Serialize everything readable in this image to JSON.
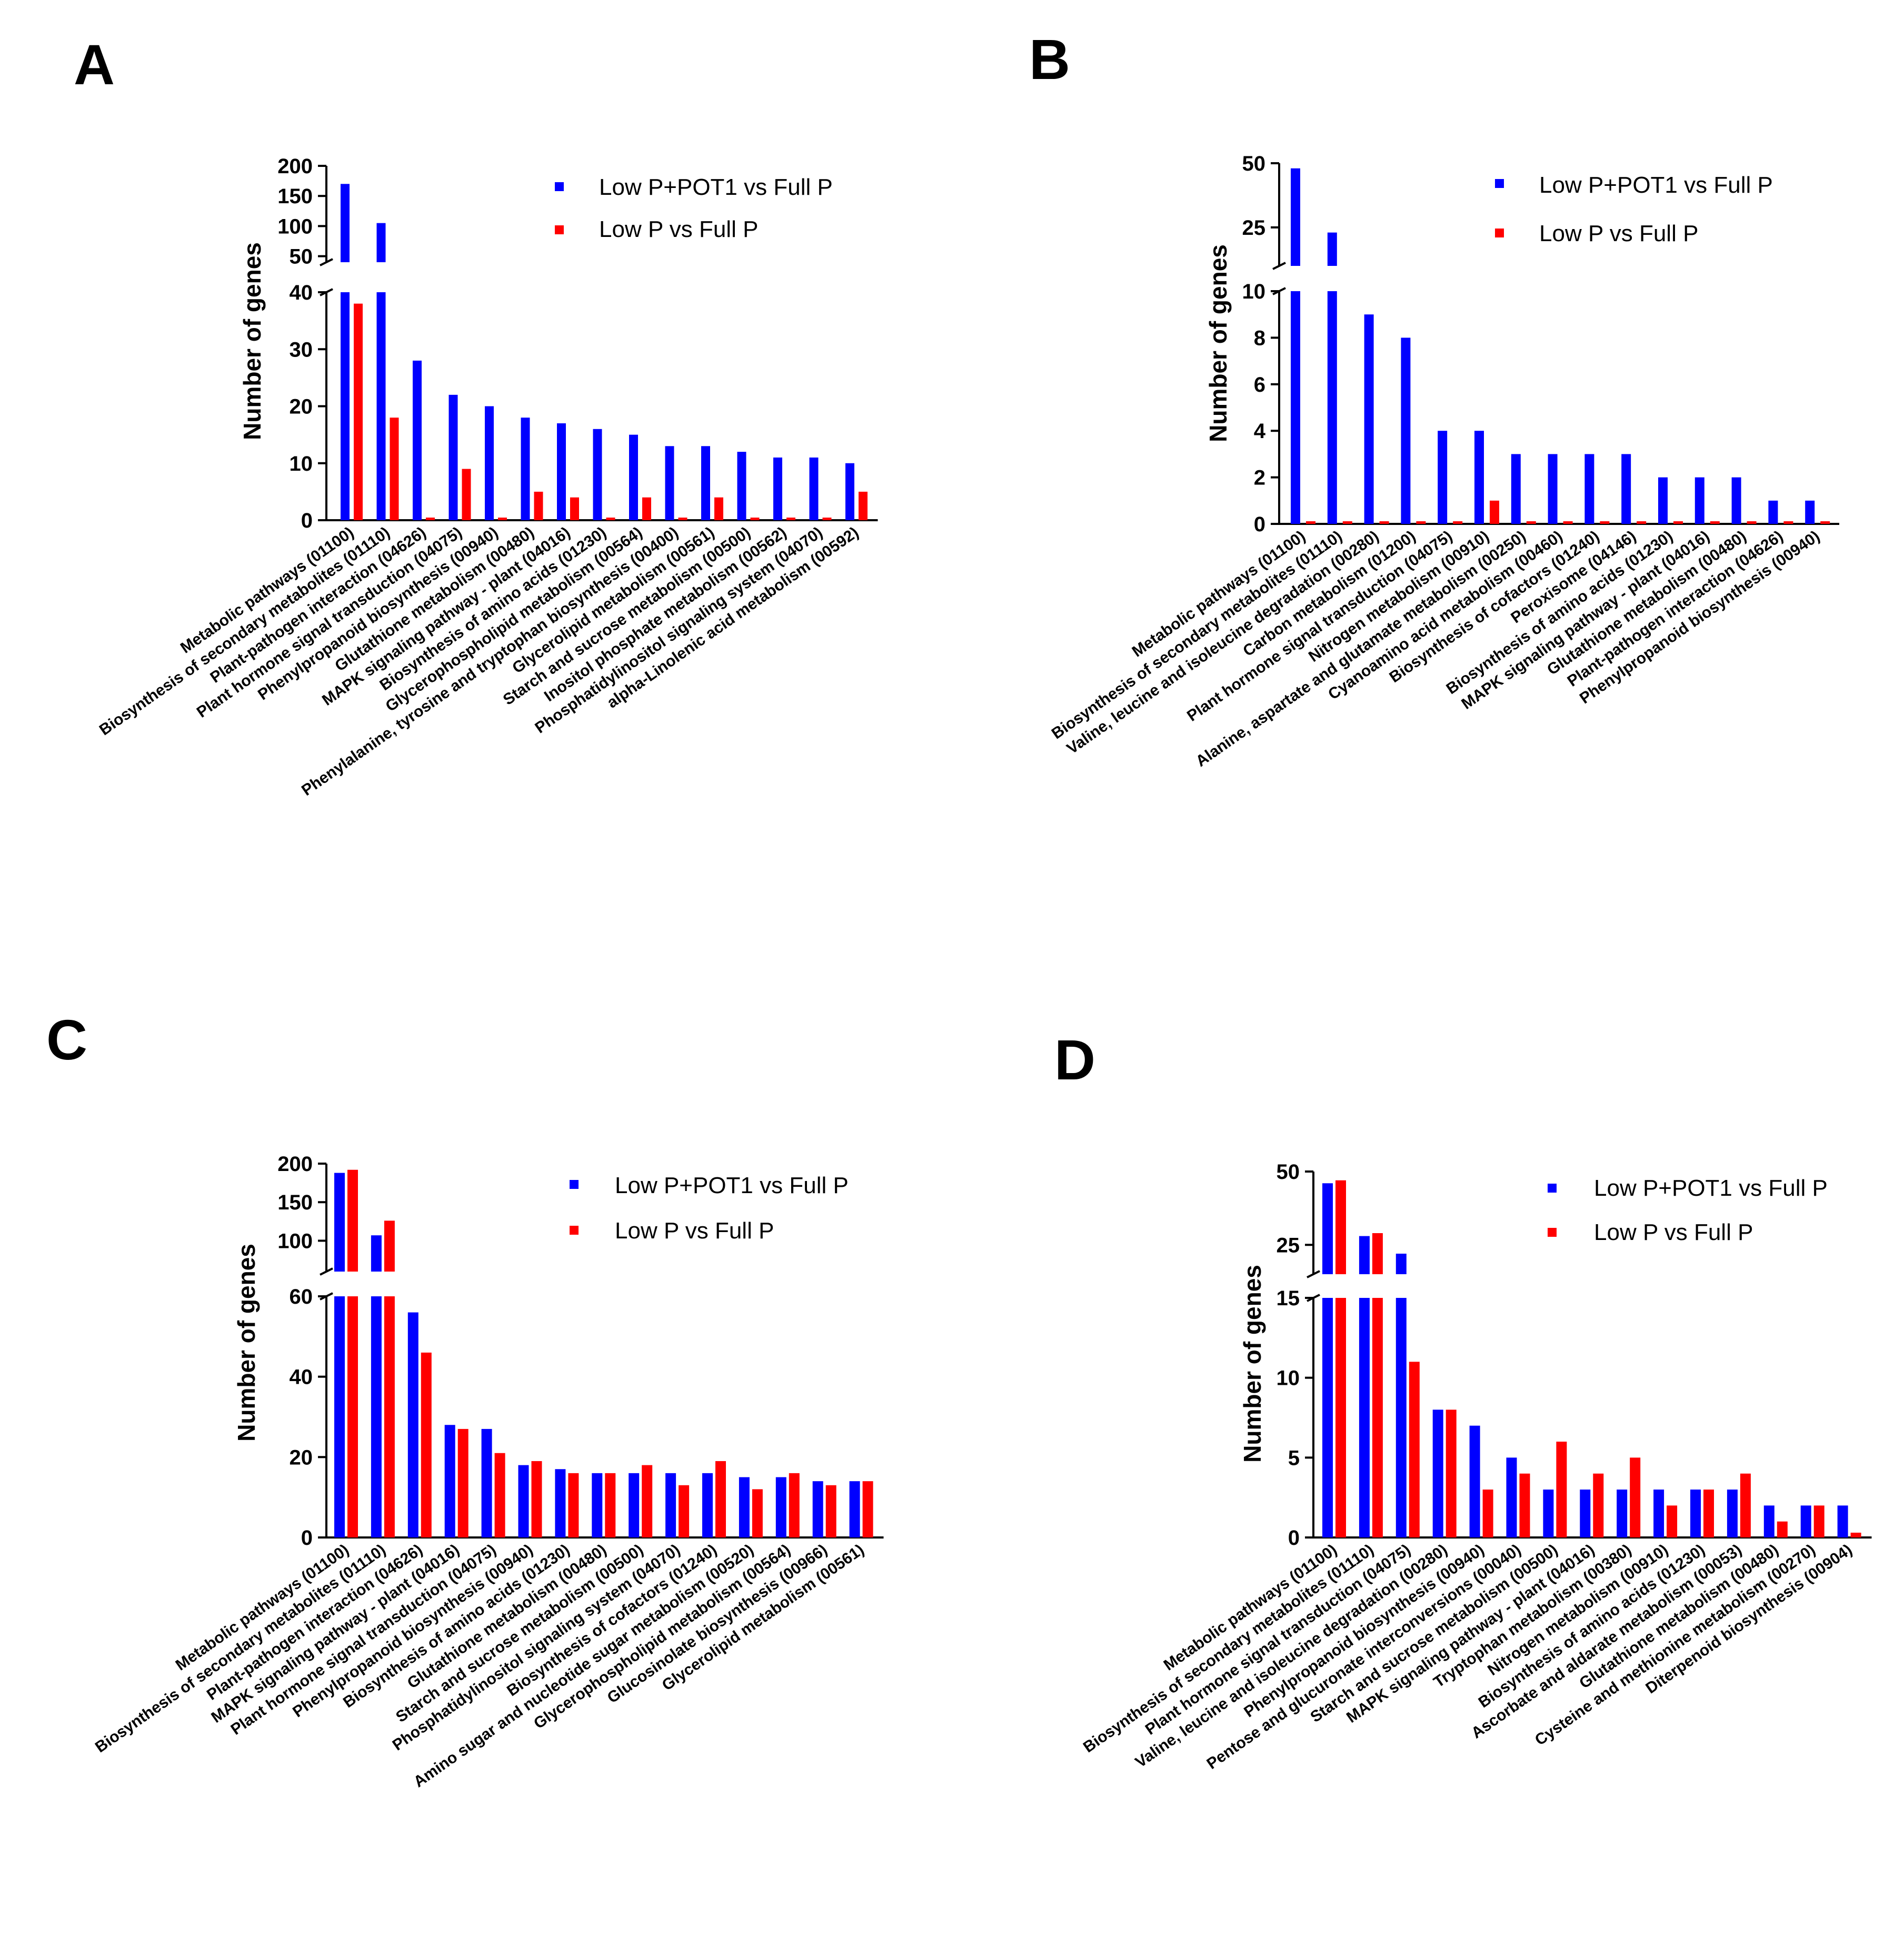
{
  "colors": {
    "series1": "#0000ff",
    "series2": "#ff0000"
  },
  "chart_data": [
    {
      "panel": "A",
      "type": "bar",
      "ylabel": "Number of genes",
      "axis_break": {
        "lower": [
          0,
          40
        ],
        "upper": [
          40,
          200
        ]
      },
      "lower_ticks": [
        "0",
        "10",
        "20",
        "30",
        "40"
      ],
      "upper_ticks": [
        "50",
        "100",
        "150",
        "200"
      ],
      "legend": [
        "Low P+POT1 vs Full P",
        "Low P vs Full P"
      ],
      "categories": [
        "Metabolic pathways (01100)",
        "Biosynthesis of secondary metabolites (01110)",
        "Plant-pathogen interaction (04626)",
        "Plant hormone signal transduction (04075)",
        "Phenylpropanoid biosynthesis (00940)",
        "Glutathione metabolism (00480)",
        "MAPK signaling pathway - plant (04016)",
        "Biosynthesis of amino acids (01230)",
        "Glycerophospholipid metabolism (00564)",
        "Phenylalanine, tyrosine and tryptophan biosynthesis (00400)",
        "Glycerolipid metabolism (00561)",
        "Starch and sucrose metabolism (00500)",
        "Inositol phosphate metabolism (00562)",
        "Phosphatidylinositol signaling system (04070)",
        "alpha-Linolenic acid metabolism (00592)"
      ],
      "series": [
        {
          "name": "Low P+POT1 vs Full P",
          "values": [
            170,
            105,
            28,
            22,
            20,
            18,
            17,
            16,
            15,
            13,
            13,
            12,
            11,
            11,
            10
          ]
        },
        {
          "name": "Low P vs Full P",
          "values": [
            38,
            18,
            0,
            9,
            0,
            5,
            4,
            0,
            4,
            0,
            4,
            0,
            0,
            0,
            5
          ]
        }
      ]
    },
    {
      "panel": "B",
      "type": "bar",
      "ylabel": "Number of genes",
      "axis_break": {
        "lower": [
          0,
          10
        ],
        "upper": [
          10,
          50
        ]
      },
      "lower_ticks": [
        "0",
        "2",
        "4",
        "6",
        "8",
        "10"
      ],
      "upper_ticks": [
        "25",
        "50"
      ],
      "legend": [
        "Low P+POT1 vs Full P",
        "Low P vs Full P"
      ],
      "categories": [
        "Metabolic pathways (01100)",
        "Biosynthesis of secondary metabolites (01110)",
        "Valine, leucine and isoleucine degradation (00280)",
        "Carbon metabolism (01200)",
        "Plant hormone signal transduction (04075)",
        "Nitrogen metabolism (00910)",
        "Alanine, aspartate and glutamate metabolism (00250)",
        "Cyanoamino acid metabolism (00460)",
        "Biosynthesis of cofactors (01240)",
        "Peroxisome (04146)",
        "Biosynthesis of amino acids (01230)",
        "MAPK signaling pathway - plant (04016)",
        "Glutathione metabolism (00480)",
        "Plant-pathogen interaction (04626)",
        "Phenylpropanoid biosynthesis (00940)"
      ],
      "series": [
        {
          "name": "Low P+POT1 vs Full P",
          "values": [
            48,
            23,
            9,
            8,
            4,
            4,
            3,
            3,
            3,
            3,
            2,
            2,
            2,
            1,
            1
          ]
        },
        {
          "name": "Low P vs Full P",
          "values": [
            0,
            0,
            0,
            0,
            0,
            1,
            0,
            0,
            0,
            0,
            0,
            0,
            0,
            0,
            0
          ]
        }
      ]
    },
    {
      "panel": "C",
      "type": "bar",
      "ylabel": "Number of genes",
      "axis_break": {
        "lower": [
          0,
          60
        ],
        "upper": [
          60,
          200
        ]
      },
      "lower_ticks": [
        "0",
        "20",
        "40",
        "60"
      ],
      "upper_ticks": [
        "100",
        "150",
        "200"
      ],
      "legend": [
        "Low P+POT1 vs Full P",
        "Low P vs Full P"
      ],
      "categories": [
        "Metabolic pathways (01100)",
        "Biosynthesis of secondary metabolites (01110)",
        "Plant-pathogen interaction (04626)",
        "MAPK signaling pathway - plant (04016)",
        "Plant hormone signal transduction (04075)",
        "Phenylpropanoid biosynthesis (00940)",
        "Biosynthesis of amino acids (01230)",
        "Glutathione metabolism (00480)",
        "Starch and sucrose metabolism (00500)",
        "Phosphatidylinositol signaling system (04070)",
        "Biosynthesis of cofactors (01240)",
        "Amino sugar and nucleotide sugar metabolism (00520)",
        "Glycerophospholipid metabolism (00564)",
        "Glucosinolate biosynthesis (00966)",
        "Glycerolipid metabolism (00561)"
      ],
      "series": [
        {
          "name": "Low P+POT1 vs Full P",
          "values": [
            188,
            107,
            56,
            28,
            27,
            18,
            17,
            16,
            16,
            16,
            16,
            15,
            15,
            14,
            14
          ]
        },
        {
          "name": "Low P vs Full P",
          "values": [
            192,
            126,
            46,
            27,
            21,
            19,
            16,
            16,
            18,
            13,
            19,
            12,
            16,
            13,
            14
          ]
        }
      ]
    },
    {
      "panel": "D",
      "type": "bar",
      "ylabel": "Number of genes",
      "axis_break": {
        "lower": [
          0,
          15
        ],
        "upper": [
          15,
          50
        ]
      },
      "lower_ticks": [
        "0",
        "5",
        "10",
        "15"
      ],
      "upper_ticks": [
        "25",
        "50"
      ],
      "legend": [
        "Low P+POT1 vs Full P",
        "Low P vs Full P"
      ],
      "categories": [
        "Metabolic pathways (01100)",
        "Biosynthesis of secondary metabolites (01110)",
        "Plant hormone signal transduction (04075)",
        "Valine, leucine and isoleucine degradation (00280)",
        "Phenylpropanoid biosynthesis (00940)",
        "Pentose and glucuronate interconversions (00040)",
        "Starch and sucrose metabolism (00500)",
        "MAPK signaling pathway - plant (04016)",
        "Tryptophan metabolism (00380)",
        "Nitrogen metabolism (00910)",
        "Biosynthesis of amino acids (01230)",
        "Ascorbate and aldarate metabolism (00053)",
        "Glutathione metabolism (00480)",
        "Cysteine and methionine metabolism (00270)",
        "Diterpenoid biosynthesis (00904)"
      ],
      "series": [
        {
          "name": "Low P+POT1 vs Full P",
          "values": [
            46,
            28,
            22,
            8,
            7,
            5,
            3,
            3,
            3,
            3,
            3,
            3,
            2,
            2,
            2
          ]
        },
        {
          "name": "Low P vs Full P",
          "values": [
            47,
            29,
            11,
            8,
            3,
            4,
            6,
            4,
            5,
            2,
            3,
            4,
            1,
            2,
            0.3
          ]
        }
      ]
    }
  ]
}
